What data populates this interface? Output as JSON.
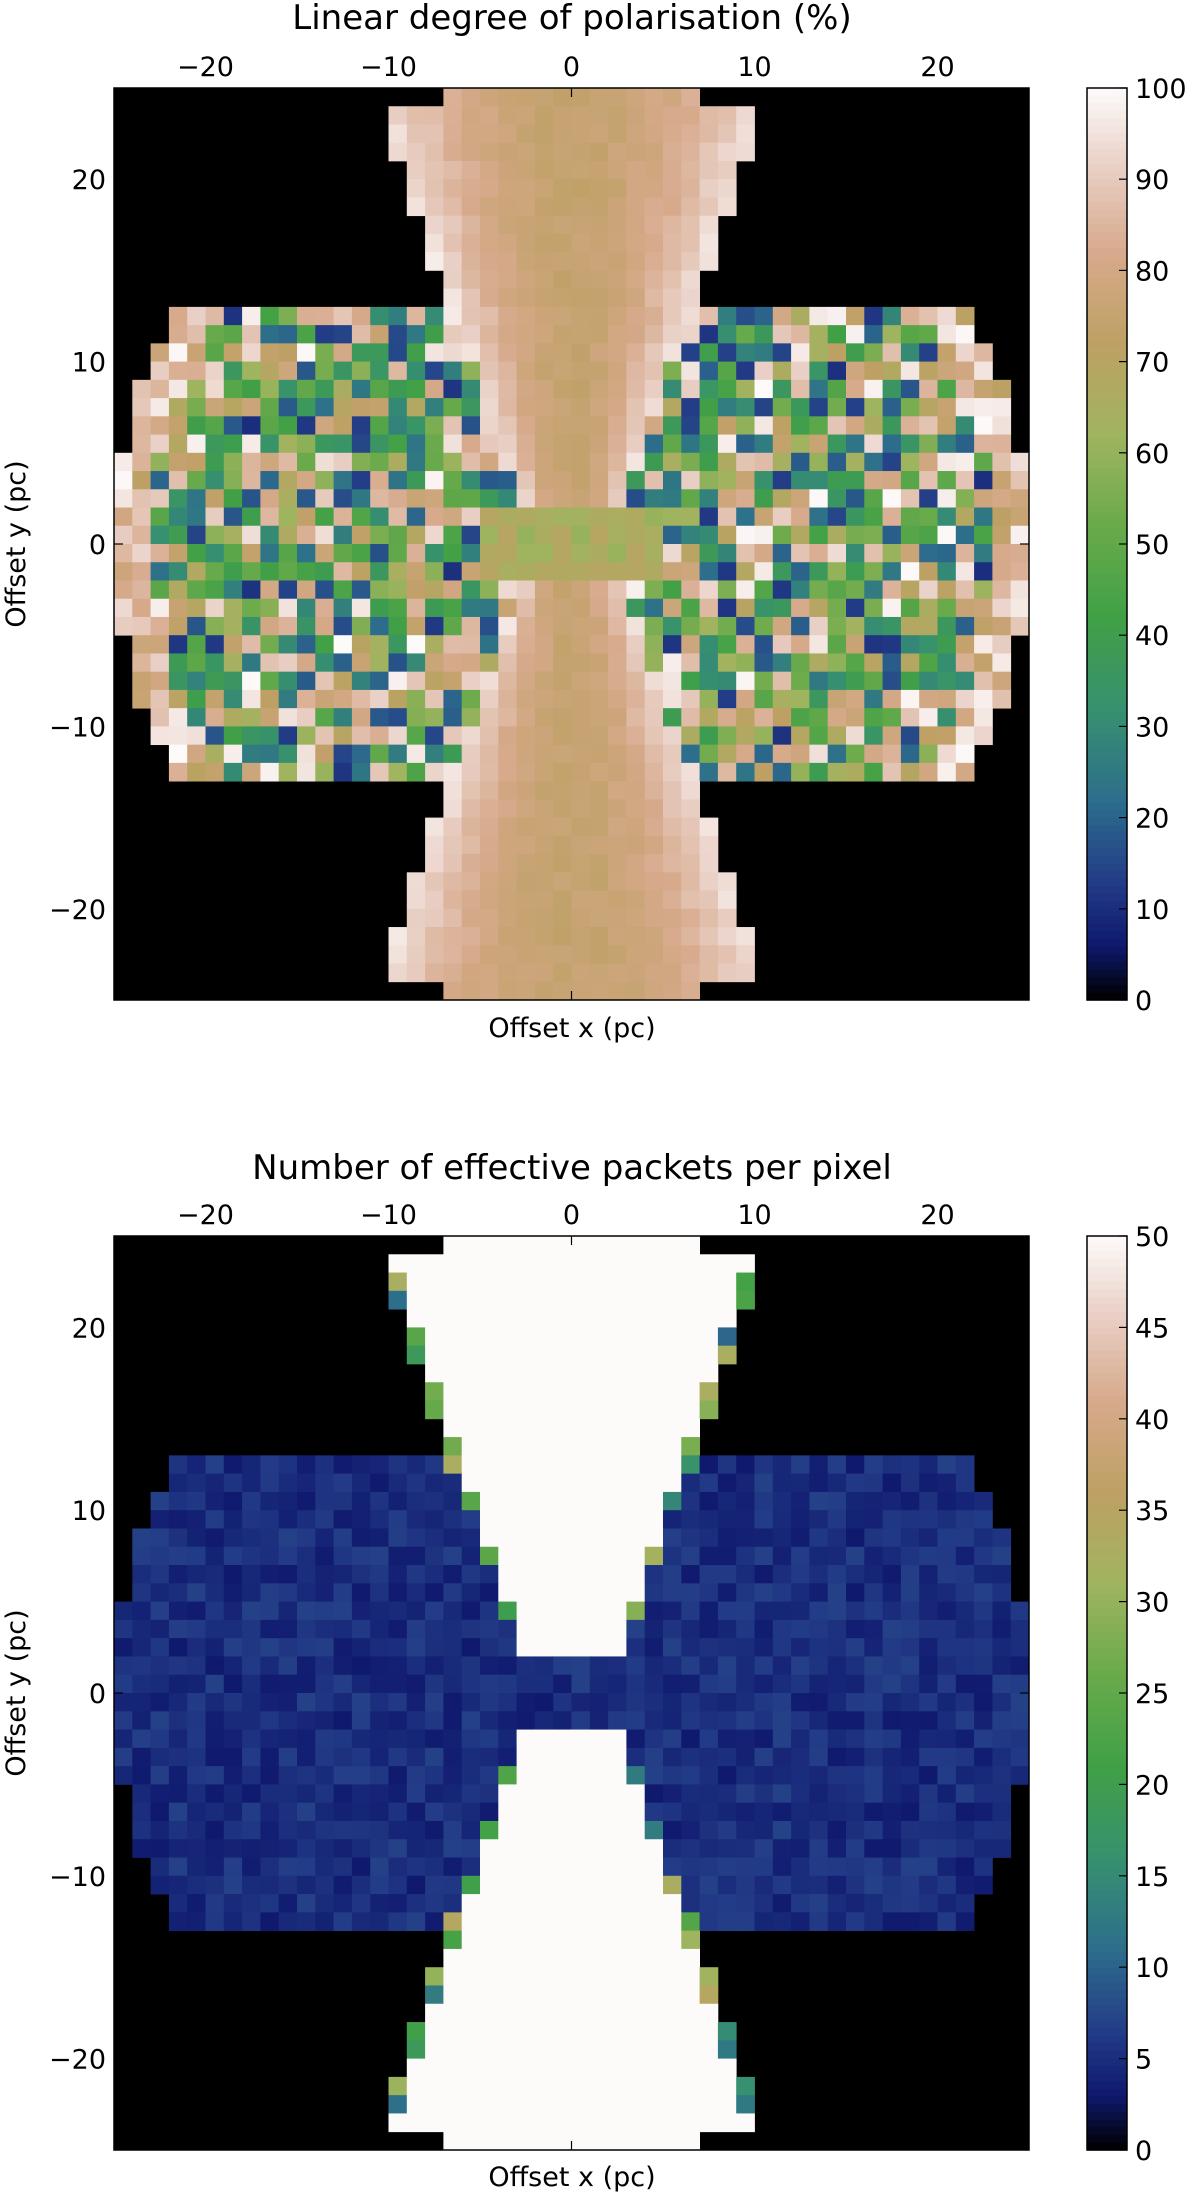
{
  "chart_data": [
    {
      "type": "heatmap",
      "title": "Linear degree of polarisation (%)",
      "xlabel": "Offset x (pc)",
      "ylabel": "Offset y (pc)",
      "xlim": [
        -25,
        25
      ],
      "ylim": [
        -25,
        25
      ],
      "xticks": [
        "−20",
        "−10",
        "0",
        "10",
        "20"
      ],
      "xtick_values": [
        -20,
        -10,
        0,
        10,
        20
      ],
      "yticks": [
        "20",
        "10",
        "0",
        "−10",
        "−20"
      ],
      "ytick_values": [
        20,
        10,
        0,
        -10,
        -20
      ],
      "x_axis_position": "top",
      "grid": false,
      "background": "#000000",
      "colormap": "gist_earth",
      "colorbar": {
        "min": 0,
        "max": 100,
        "ticks": [
          "0",
          "10",
          "20",
          "30",
          "40",
          "50",
          "60",
          "70",
          "80",
          "90",
          "100"
        ],
        "tick_values": [
          0,
          10,
          20,
          30,
          40,
          50,
          60,
          70,
          80,
          90,
          100
        ]
      },
      "pixel_size_pc": 1,
      "regions": {
        "cone_axis": "vertical",
        "cone_half_width_at_center": 2,
        "cone_half_width_at_edge": 11,
        "torus_half_height": 13,
        "torus_outer_radius": 25,
        "cone_value_center": 75,
        "cone_value_edge": 96,
        "torus_value_mean": 55,
        "torus_value_spread": 45
      }
    },
    {
      "type": "heatmap",
      "title": "Number of effective packets per pixel",
      "xlabel": "Offset x (pc)",
      "ylabel": "Offset y (pc)",
      "xlim": [
        -25,
        25
      ],
      "ylim": [
        -25,
        25
      ],
      "xticks": [
        "−20",
        "−10",
        "0",
        "10",
        "20"
      ],
      "xtick_values": [
        -20,
        -10,
        0,
        10,
        20
      ],
      "yticks": [
        "20",
        "10",
        "0",
        "−10",
        "−20"
      ],
      "ytick_values": [
        20,
        10,
        0,
        -10,
        -20
      ],
      "x_axis_position": "top",
      "grid": false,
      "background": "#000000",
      "colormap": "gist_earth",
      "colorbar": {
        "min": 0,
        "max": 50,
        "ticks": [
          "0",
          "5",
          "10",
          "15",
          "20",
          "25",
          "30",
          "35",
          "40",
          "45",
          "50"
        ],
        "tick_values": [
          0,
          5,
          10,
          15,
          20,
          25,
          30,
          35,
          40,
          45,
          50
        ]
      },
      "pixel_size_pc": 1,
      "regions": {
        "cone_axis": "vertical",
        "cone_half_width_at_center": 2,
        "cone_half_width_at_edge": 11,
        "torus_half_height": 13,
        "torus_outer_radius": 25,
        "cone_value": 50,
        "cone_edge_value": 35,
        "torus_value_mean": 5,
        "torus_value_spread": 2
      }
    }
  ]
}
